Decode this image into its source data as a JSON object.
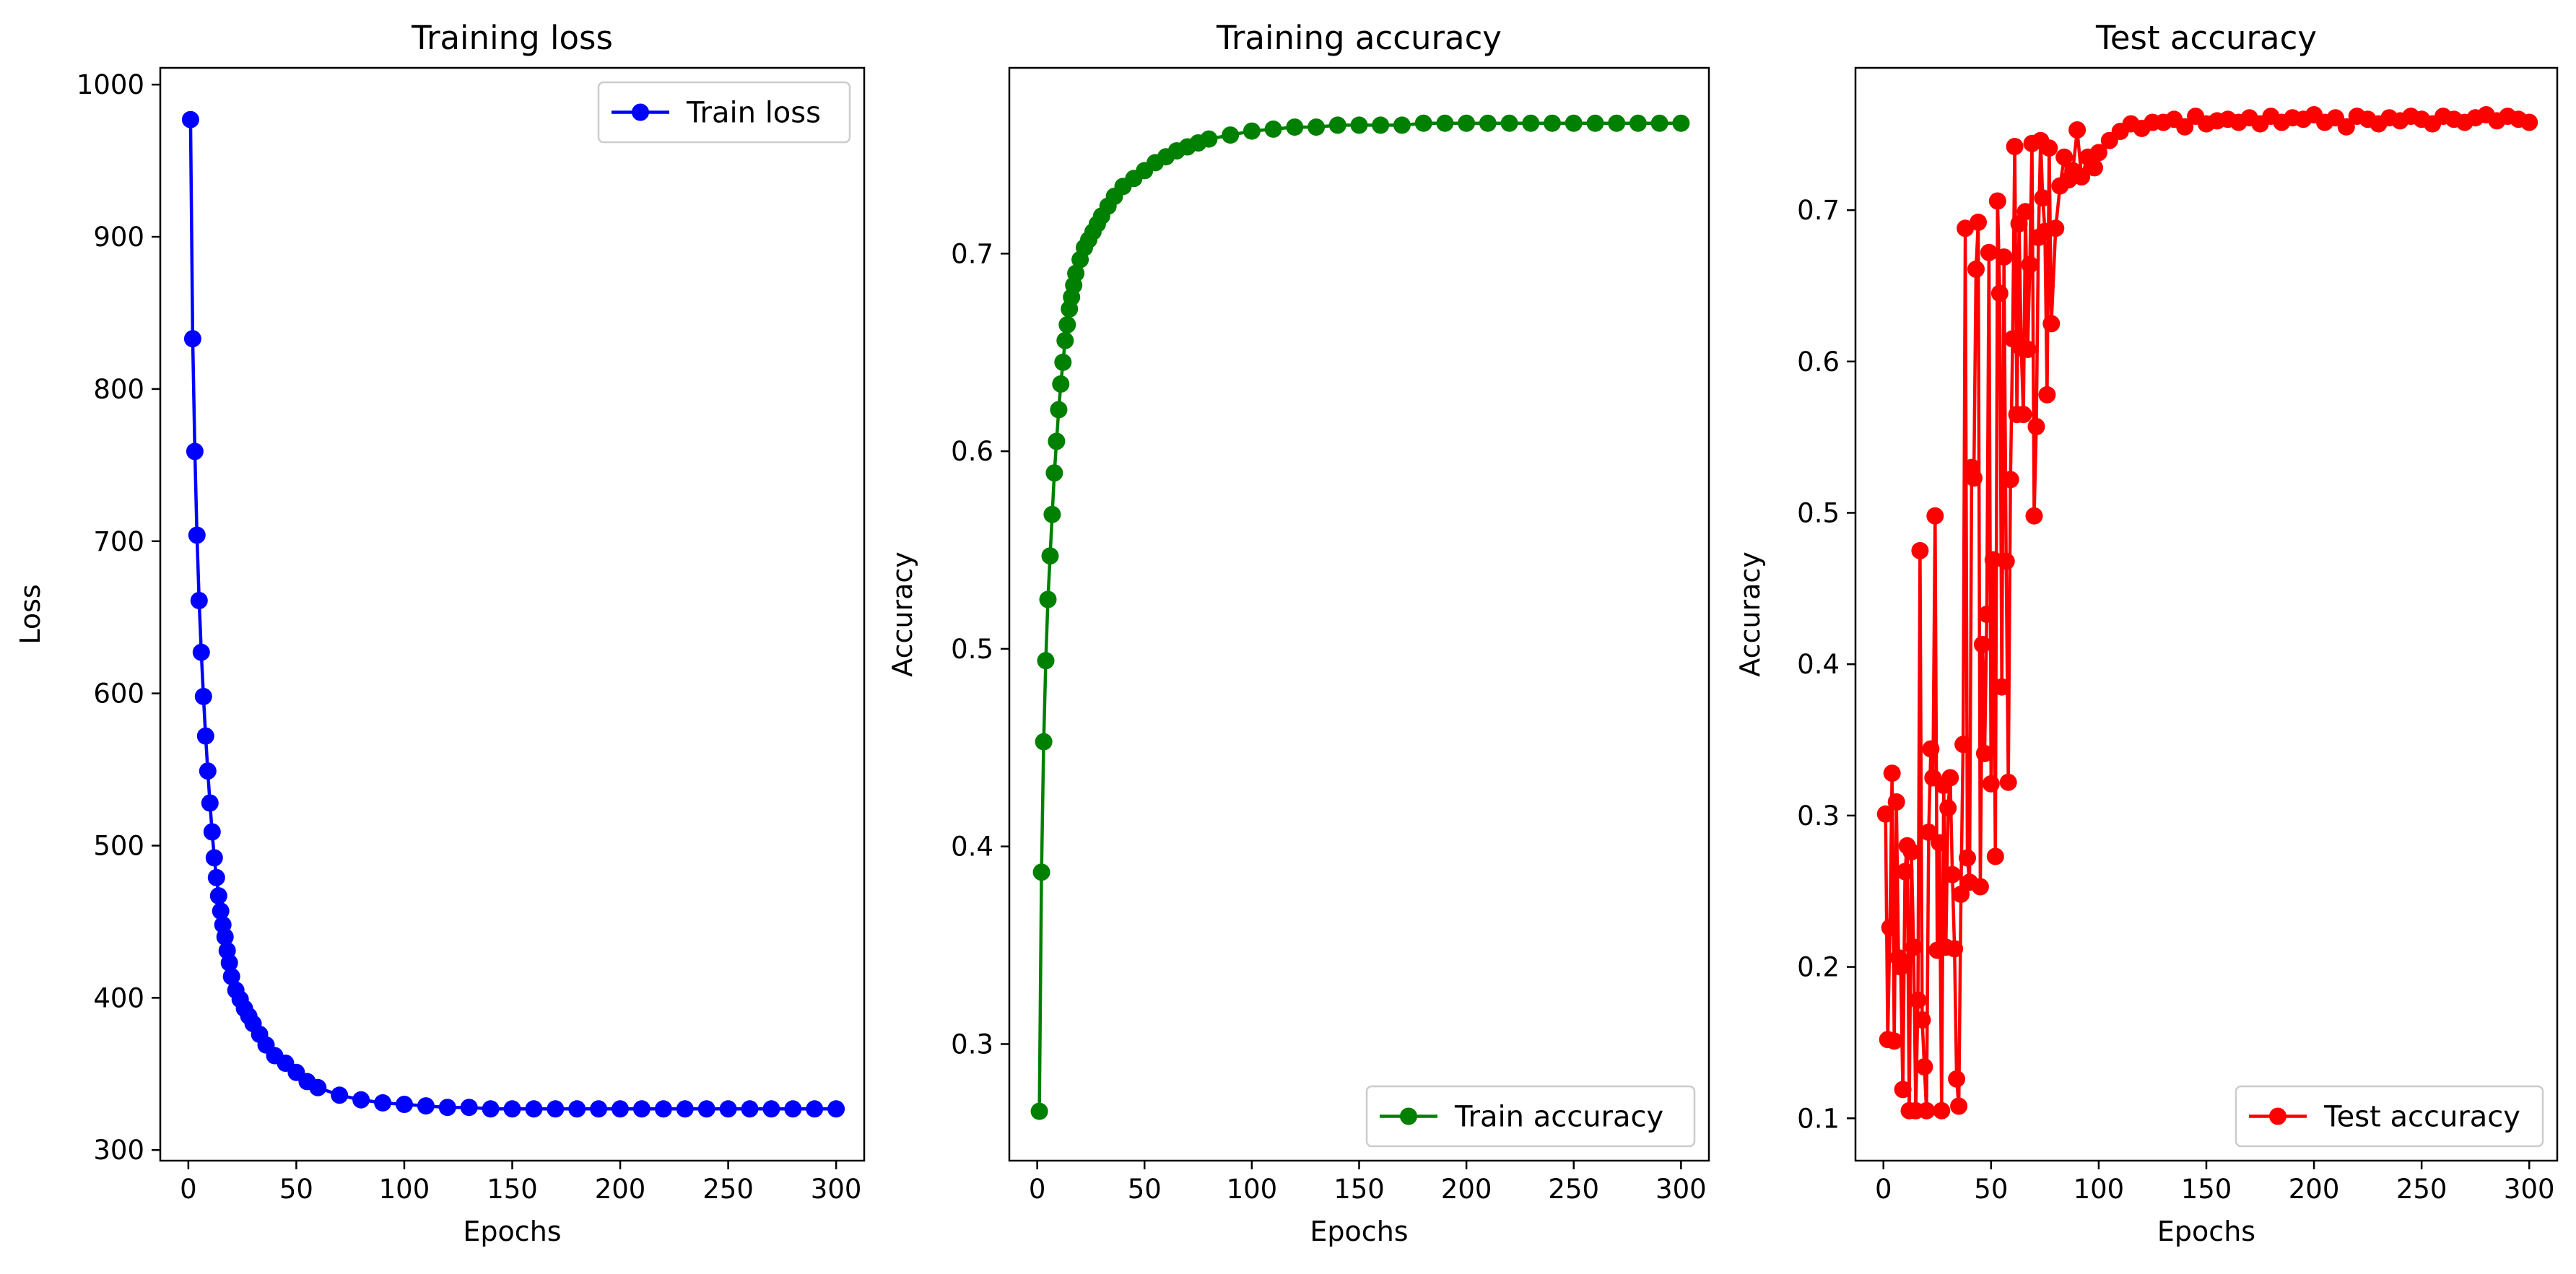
{
  "chart_data": [
    {
      "type": "line",
      "title": "Training loss",
      "xlabel": "Epochs",
      "ylabel": "Loss",
      "xlim": [
        -13,
        313
      ],
      "ylim": [
        293,
        1011
      ],
      "xticks": [
        0,
        50,
        100,
        150,
        200,
        250,
        300
      ],
      "yticks": [
        300,
        400,
        500,
        600,
        700,
        800,
        900,
        1000
      ],
      "yticks_label": [
        "300",
        "400",
        "500",
        "600",
        "700",
        "800",
        "900",
        "1000"
      ],
      "legend": "upper right",
      "grid": false,
      "series": [
        {
          "name": "Train loss",
          "color": "#0000ff",
          "marker": "circle",
          "x": [
            1,
            2,
            3,
            4,
            5,
            6,
            7,
            8,
            9,
            10,
            11,
            12,
            13,
            14,
            15,
            16,
            17,
            18,
            19,
            20,
            22,
            24,
            26,
            28,
            30,
            33,
            36,
            40,
            45,
            50,
            55,
            60,
            70,
            80,
            90,
            100,
            110,
            120,
            130,
            140,
            150,
            160,
            170,
            180,
            190,
            200,
            210,
            220,
            230,
            240,
            250,
            260,
            270,
            280,
            290,
            300
          ],
          "y": [
            977,
            833,
            759,
            704,
            661,
            627,
            598,
            572,
            549,
            528,
            509,
            492,
            479,
            467,
            457,
            448,
            440,
            431,
            423,
            414,
            405,
            399,
            393,
            388,
            383,
            376,
            369,
            362,
            357,
            351,
            345,
            341,
            336,
            333,
            331,
            330,
            329,
            328,
            328,
            327,
            327,
            327,
            327,
            327,
            327,
            327,
            327,
            327,
            327,
            327,
            327,
            327,
            327,
            327,
            327,
            327
          ]
        }
      ]
    },
    {
      "type": "line",
      "title": "Training accuracy",
      "xlabel": "Epochs",
      "ylabel": "Accuracy",
      "xlim": [
        -13,
        313
      ],
      "ylim": [
        0.241,
        0.794
      ],
      "xticks": [
        0,
        50,
        100,
        150,
        200,
        250,
        300
      ],
      "yticks": [
        0.3,
        0.4,
        0.5,
        0.6,
        0.7
      ],
      "yticks_label": [
        "0.3",
        "0.4",
        "0.5",
        "0.6",
        "0.7"
      ],
      "legend": "lower right",
      "grid": false,
      "series": [
        {
          "name": "Train accuracy",
          "color": "#008000",
          "marker": "circle",
          "x": [
            1,
            2,
            3,
            4,
            5,
            6,
            7,
            8,
            9,
            10,
            11,
            12,
            13,
            14,
            15,
            16,
            17,
            18,
            20,
            22,
            24,
            26,
            28,
            30,
            33,
            36,
            40,
            45,
            50,
            55,
            60,
            65,
            70,
            75,
            80,
            90,
            100,
            110,
            120,
            130,
            140,
            150,
            160,
            170,
            180,
            190,
            200,
            210,
            220,
            230,
            240,
            250,
            260,
            270,
            280,
            290,
            300
          ],
          "y": [
            0.266,
            0.387,
            0.453,
            0.494,
            0.525,
            0.547,
            0.568,
            0.589,
            0.605,
            0.621,
            0.634,
            0.645,
            0.656,
            0.664,
            0.672,
            0.678,
            0.684,
            0.69,
            0.697,
            0.703,
            0.707,
            0.711,
            0.715,
            0.719,
            0.724,
            0.729,
            0.734,
            0.738,
            0.742,
            0.746,
            0.749,
            0.752,
            0.754,
            0.756,
            0.758,
            0.76,
            0.762,
            0.763,
            0.764,
            0.764,
            0.765,
            0.765,
            0.765,
            0.765,
            0.766,
            0.766,
            0.766,
            0.766,
            0.766,
            0.766,
            0.766,
            0.766,
            0.766,
            0.766,
            0.766,
            0.766,
            0.766
          ]
        }
      ]
    },
    {
      "type": "line",
      "title": "Test accuracy",
      "xlabel": "Epochs",
      "ylabel": "Accuracy",
      "xlim": [
        -13,
        313
      ],
      "ylim": [
        0.072,
        0.794
      ],
      "xticks": [
        0,
        50,
        100,
        150,
        200,
        250,
        300
      ],
      "yticks": [
        0.1,
        0.2,
        0.3,
        0.4,
        0.5,
        0.6,
        0.7
      ],
      "yticks_label": [
        "0.1",
        "0.2",
        "0.3",
        "0.4",
        "0.5",
        "0.6",
        "0.7"
      ],
      "legend": "lower right",
      "grid": false,
      "series": [
        {
          "name": "Test accuracy",
          "color": "#ff0000",
          "marker": "circle",
          "x": [
            1,
            2,
            3,
            4,
            5,
            6,
            7,
            8,
            9,
            10,
            11,
            12,
            13,
            14,
            15,
            16,
            17,
            18,
            19,
            20,
            21,
            22,
            23,
            24,
            25,
            26,
            27,
            28,
            29,
            30,
            31,
            32,
            33,
            34,
            35,
            36,
            37,
            38,
            39,
            40,
            41,
            42,
            43,
            44,
            45,
            46,
            47,
            48,
            49,
            50,
            51,
            52,
            53,
            54,
            55,
            56,
            57,
            58,
            59,
            60,
            61,
            62,
            63,
            64,
            65,
            66,
            67,
            68,
            69,
            70,
            71,
            72,
            73,
            74,
            75,
            76,
            77,
            78,
            80,
            82,
            84,
            86,
            88,
            90,
            92,
            95,
            98,
            100,
            105,
            110,
            115,
            120,
            125,
            130,
            135,
            140,
            145,
            150,
            155,
            160,
            165,
            170,
            175,
            180,
            185,
            190,
            195,
            200,
            205,
            210,
            215,
            220,
            225,
            230,
            235,
            240,
            245,
            250,
            255,
            260,
            265,
            270,
            275,
            280,
            285,
            290,
            295,
            300
          ],
          "y": [
            0.301,
            0.152,
            0.226,
            0.328,
            0.151,
            0.309,
            0.206,
            0.2,
            0.119,
            0.263,
            0.28,
            0.105,
            0.276,
            0.213,
            0.105,
            0.178,
            0.475,
            0.165,
            0.134,
            0.105,
            0.289,
            0.344,
            0.325,
            0.498,
            0.211,
            0.282,
            0.105,
            0.32,
            0.213,
            0.305,
            0.325,
            0.261,
            0.212,
            0.126,
            0.108,
            0.248,
            0.347,
            0.688,
            0.272,
            0.256,
            0.53,
            0.523,
            0.661,
            0.692,
            0.253,
            0.413,
            0.341,
            0.433,
            0.672,
            0.321,
            0.469,
            0.273,
            0.706,
            0.645,
            0.385,
            0.669,
            0.468,
            0.322,
            0.522,
            0.615,
            0.742,
            0.565,
            0.691,
            0.609,
            0.565,
            0.699,
            0.608,
            0.664,
            0.744,
            0.498,
            0.557,
            0.682,
            0.746,
            0.708,
            0.686,
            0.578,
            0.741,
            0.625,
            0.688,
            0.716,
            0.735,
            0.72,
            0.726,
            0.753,
            0.722,
            0.735,
            0.728,
            0.738,
            0.746,
            0.752,
            0.757,
            0.754,
            0.758,
            0.758,
            0.76,
            0.755,
            0.762,
            0.757,
            0.759,
            0.76,
            0.758,
            0.761,
            0.757,
            0.762,
            0.758,
            0.761,
            0.76,
            0.763,
            0.758,
            0.761,
            0.755,
            0.762,
            0.76,
            0.757,
            0.761,
            0.759,
            0.762,
            0.76,
            0.757,
            0.762,
            0.76,
            0.758,
            0.761,
            0.763,
            0.759,
            0.762,
            0.76,
            0.758
          ]
        }
      ]
    }
  ]
}
